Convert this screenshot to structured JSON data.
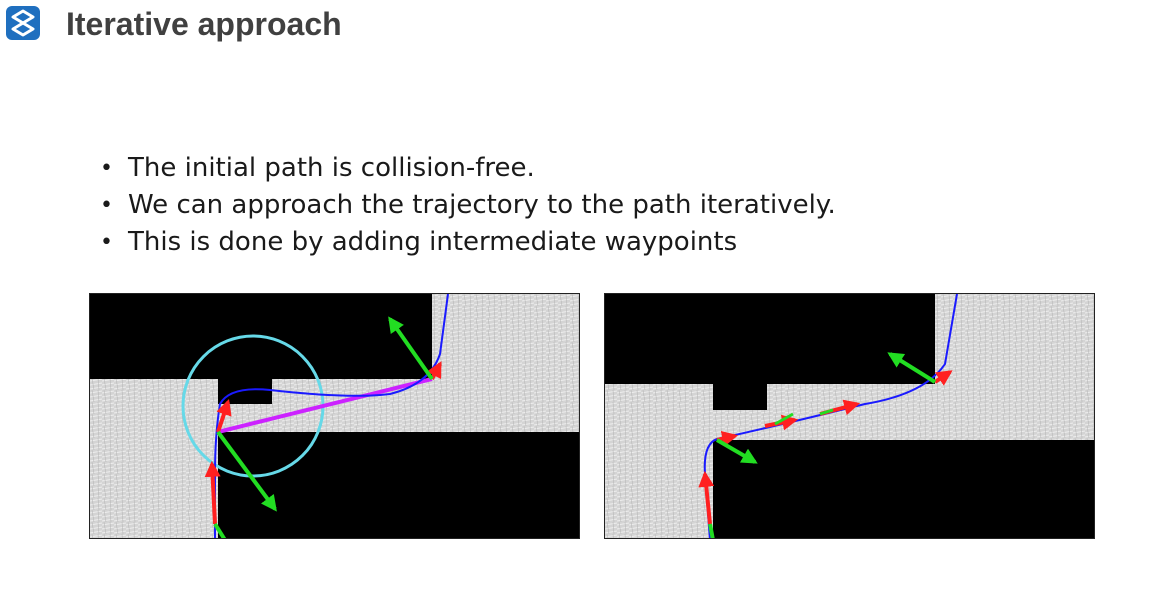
{
  "header": {
    "title": "Iterative approach",
    "logo_icon": "s-logo-icon",
    "logo_color": "#1f6fbf"
  },
  "bullets": [
    "The initial path is collision-free.",
    "We can approach the trajectory to the path iteratively.",
    "This is done by adding intermediate waypoints"
  ],
  "figures": [
    {
      "name": "initial-path-figure",
      "colors": {
        "path": "#1a1aff",
        "straight_segment": "#cc22ff",
        "circle": "#66d9e8",
        "arrow_red": "#ff2020",
        "arrow_green": "#22dd22"
      }
    },
    {
      "name": "waypoints-figure",
      "colors": {
        "path": "#1a1aff",
        "arrow_red": "#ff2020",
        "arrow_green": "#22dd22"
      }
    }
  ]
}
